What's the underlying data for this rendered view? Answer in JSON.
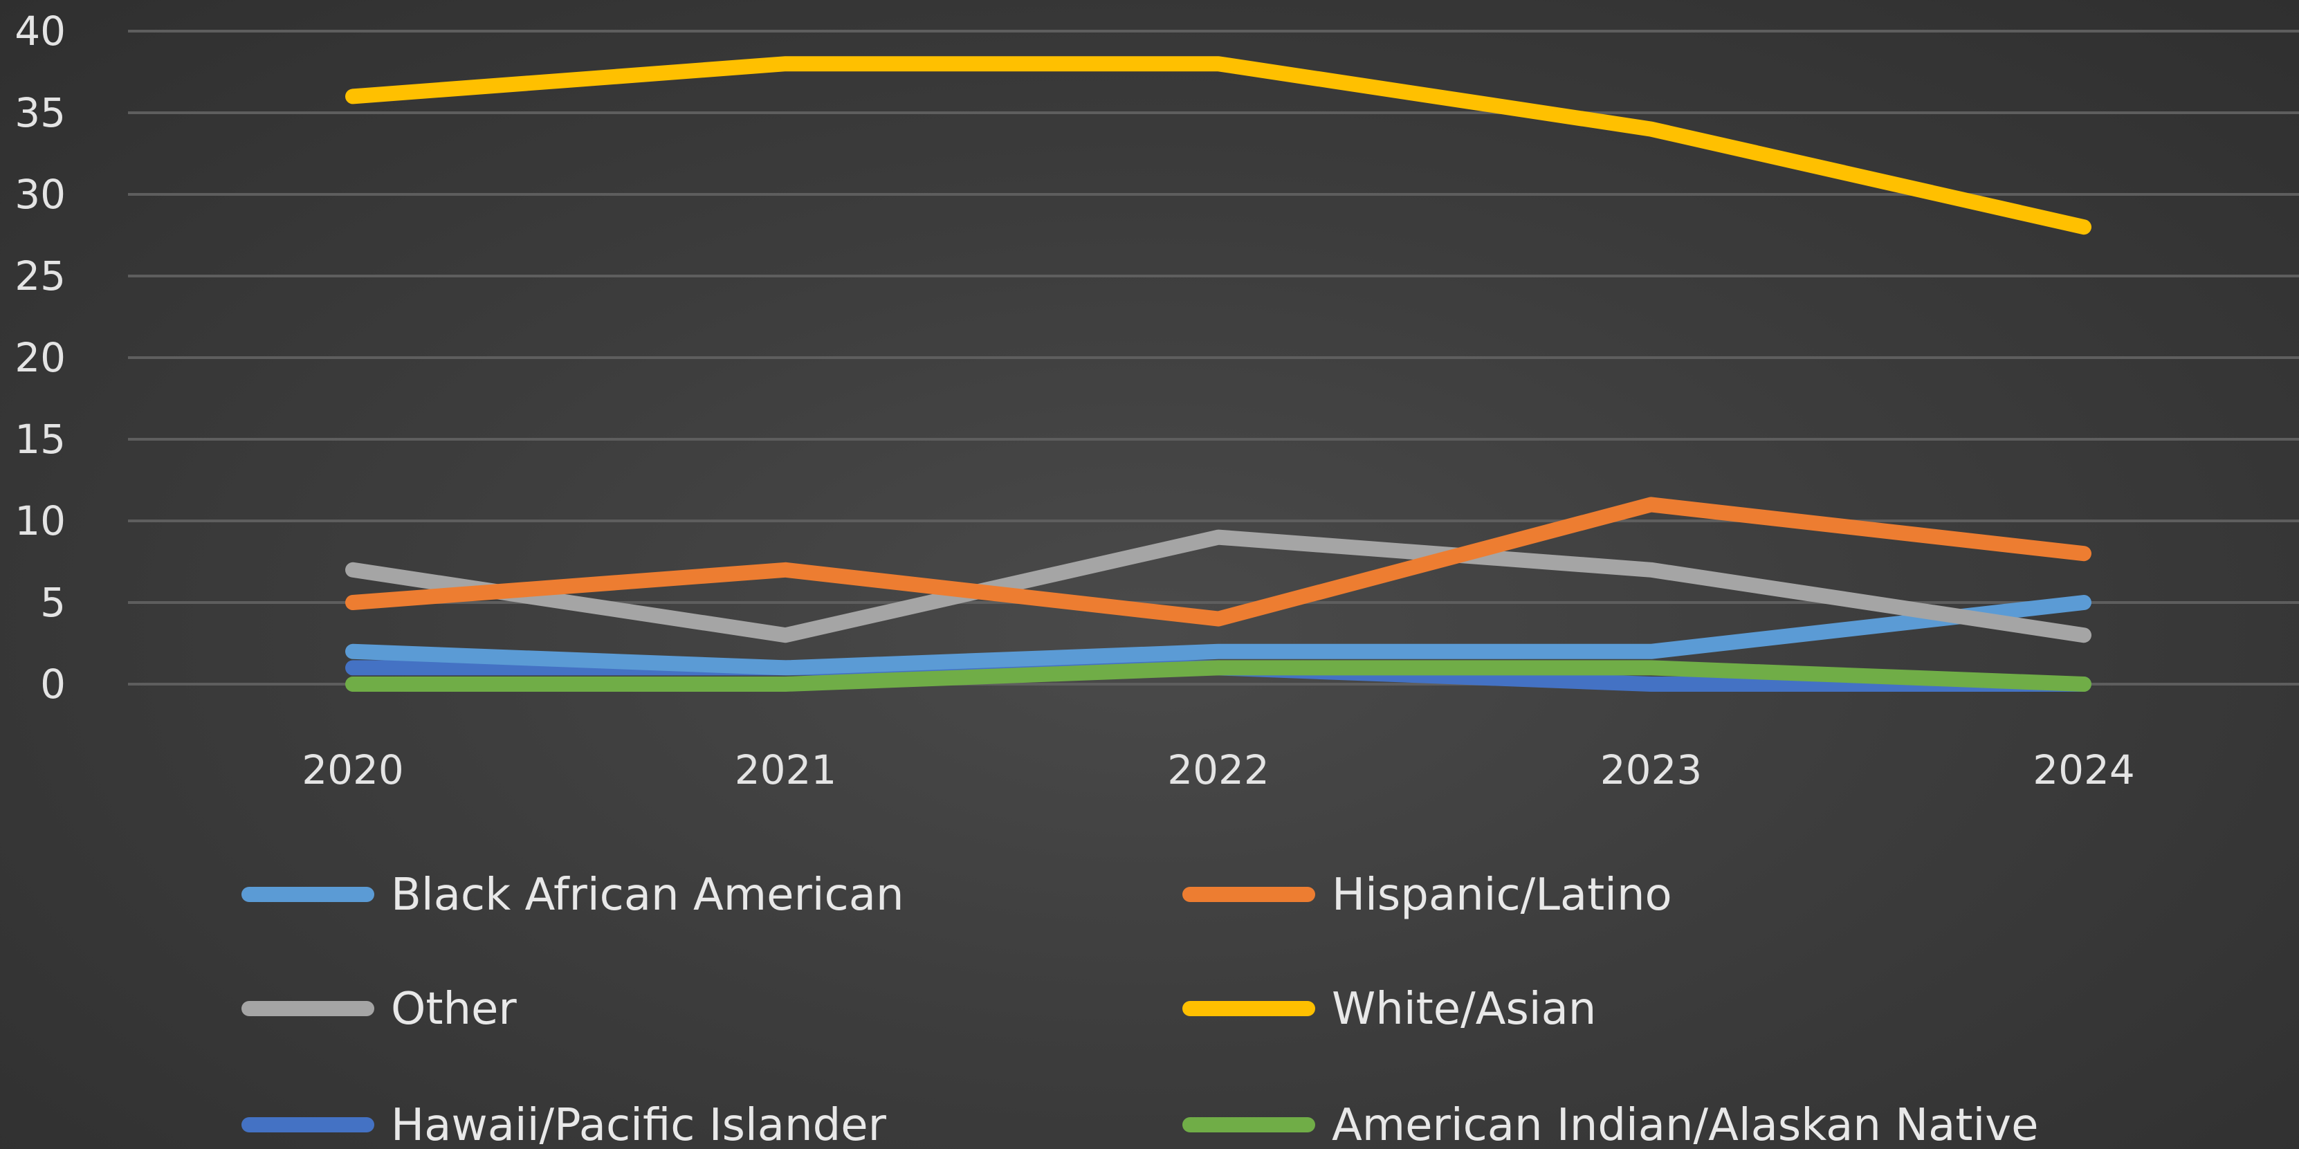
{
  "chart_data": {
    "type": "line",
    "title": "",
    "xlabel": "",
    "ylabel": "",
    "categories": [
      "2020",
      "2021",
      "2022",
      "2023",
      "2024"
    ],
    "ylim": [
      0,
      40
    ],
    "yticks": [
      "0",
      "5",
      "10",
      "15",
      "20",
      "25",
      "30",
      "35",
      "40"
    ],
    "grid": true,
    "legend_position": "bottom",
    "series": [
      {
        "name": "Black African American",
        "color": "#5b9bd5",
        "values": [
          2,
          1,
          2,
          2,
          5
        ]
      },
      {
        "name": "Hispanic/Latino",
        "color": "#ed7d31",
        "values": [
          5,
          7,
          4,
          11,
          8
        ]
      },
      {
        "name": "Other",
        "color": "#a5a5a5",
        "values": [
          7,
          3,
          9,
          7,
          3
        ]
      },
      {
        "name": "White/Asian",
        "color": "#ffc000",
        "values": [
          36,
          38,
          38,
          34,
          28
        ]
      },
      {
        "name": "Hawaii/Pacific Islander",
        "color": "#4472c4",
        "values": [
          1,
          1,
          1,
          0,
          0
        ]
      },
      {
        "name": "American Indian/Alaskan Native",
        "color": "#70ad47",
        "values": [
          0,
          0,
          1,
          1,
          0
        ]
      }
    ]
  }
}
